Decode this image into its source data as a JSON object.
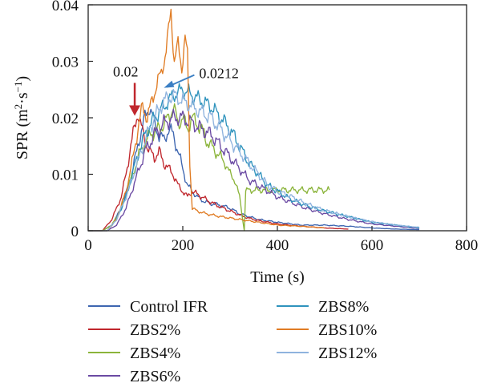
{
  "chart_data": {
    "type": "line",
    "title": "",
    "xlabel": "Time (s)",
    "ylabel_main": "SPR (m",
    "ylabel_sup1": "2",
    "ylabel_mid": "·s",
    "ylabel_sup2": "−1",
    "ylabel_end": ")",
    "xlim": [
      0,
      800
    ],
    "ylim": [
      0,
      0.04
    ],
    "x_ticks": [
      "0",
      "200",
      "400",
      "600",
      "800"
    ],
    "y_ticks": [
      "0",
      "0.01",
      "0.02",
      "0.03",
      "0.04"
    ],
    "grid": false,
    "legend_position": "bottom",
    "annotations": [
      {
        "label": "0.02",
        "x": 95,
        "y": 0.0205,
        "color": "#c0272d"
      },
      {
        "label": "0.0212",
        "x": 160,
        "y": 0.0253,
        "color": "#3b7fc4"
      }
    ],
    "series": [
      {
        "name": "Control IFR",
        "color": "#3e66b0",
        "points": [
          [
            0,
            0
          ],
          [
            30,
            0
          ],
          [
            50,
            0.001
          ],
          [
            70,
            0.004
          ],
          [
            85,
            0.008
          ],
          [
            100,
            0.013
          ],
          [
            110,
            0.017
          ],
          [
            120,
            0.02
          ],
          [
            130,
            0.022
          ],
          [
            140,
            0.019
          ],
          [
            150,
            0.017
          ],
          [
            160,
            0.016
          ],
          [
            170,
            0.018
          ],
          [
            180,
            0.017
          ],
          [
            190,
            0.014
          ],
          [
            200,
            0.011
          ],
          [
            210,
            0.008
          ],
          [
            230,
            0.006
          ],
          [
            250,
            0.005
          ],
          [
            280,
            0.0045
          ],
          [
            300,
            0.004
          ],
          [
            320,
            0.003
          ],
          [
            340,
            0.0025
          ],
          [
            360,
            0.002
          ],
          [
            400,
            0.0015
          ],
          [
            450,
            0.001
          ],
          [
            500,
            0.001
          ],
          [
            550,
            0.0008
          ],
          [
            600,
            0.0005
          ],
          [
            650,
            0.0003
          ],
          [
            700,
            0.0002
          ]
        ]
      },
      {
        "name": "ZBS2%",
        "color": "#c0272d",
        "points": [
          [
            0,
            0
          ],
          [
            30,
            0
          ],
          [
            50,
            0.002
          ],
          [
            70,
            0.006
          ],
          [
            80,
            0.01
          ],
          [
            90,
            0.015
          ],
          [
            100,
            0.019
          ],
          [
            105,
            0.021
          ],
          [
            110,
            0.019
          ],
          [
            120,
            0.016
          ],
          [
            130,
            0.014
          ],
          [
            140,
            0.013
          ],
          [
            150,
            0.014
          ],
          [
            160,
            0.012
          ],
          [
            170,
            0.011
          ],
          [
            180,
            0.01
          ],
          [
            190,
            0.008
          ],
          [
            200,
            0.007
          ],
          [
            210,
            0.006
          ],
          [
            220,
            0.007
          ],
          [
            240,
            0.006
          ],
          [
            260,
            0.005
          ],
          [
            280,
            0.0042
          ],
          [
            300,
            0.0035
          ],
          [
            320,
            0.0028
          ],
          [
            340,
            0.0022
          ],
          [
            360,
            0.0018
          ],
          [
            380,
            0.0015
          ],
          [
            400,
            0.0012
          ],
          [
            450,
            0.0008
          ],
          [
            500,
            0.0005
          ],
          [
            550,
            0.0003
          ]
        ]
      },
      {
        "name": "ZBS4%",
        "color": "#8bb43a",
        "points": [
          [
            0,
            0
          ],
          [
            30,
            0
          ],
          [
            50,
            0.001
          ],
          [
            70,
            0.004
          ],
          [
            90,
            0.009
          ],
          [
            110,
            0.014
          ],
          [
            130,
            0.017
          ],
          [
            150,
            0.018
          ],
          [
            170,
            0.02
          ],
          [
            180,
            0.022
          ],
          [
            190,
            0.019
          ],
          [
            200,
            0.02
          ],
          [
            210,
            0.018
          ],
          [
            220,
            0.02
          ],
          [
            230,
            0.019
          ],
          [
            240,
            0.018
          ],
          [
            250,
            0.016
          ],
          [
            260,
            0.015
          ],
          [
            270,
            0.014
          ],
          [
            280,
            0.013
          ],
          [
            290,
            0.012
          ],
          [
            300,
            0.01
          ],
          [
            310,
            0.009
          ],
          [
            320,
            0.006
          ],
          [
            325,
            0.003
          ],
          [
            330,
            0
          ],
          [
            333,
            0.007
          ],
          [
            340,
            0.0072
          ],
          [
            400,
            0.0072
          ],
          [
            450,
            0.0072
          ],
          [
            510,
            0.0072
          ]
        ]
      },
      {
        "name": "ZBS6%",
        "color": "#6b4aa3",
        "points": [
          [
            0,
            0
          ],
          [
            40,
            0
          ],
          [
            60,
            0.001
          ],
          [
            80,
            0.004
          ],
          [
            100,
            0.009
          ],
          [
            120,
            0.014
          ],
          [
            140,
            0.017
          ],
          [
            160,
            0.019
          ],
          [
            180,
            0.02
          ],
          [
            200,
            0.02
          ],
          [
            220,
            0.019
          ],
          [
            240,
            0.018
          ],
          [
            260,
            0.017
          ],
          [
            280,
            0.015
          ],
          [
            300,
            0.013
          ],
          [
            320,
            0.011
          ],
          [
            340,
            0.009
          ],
          [
            360,
            0.008
          ],
          [
            380,
            0.007
          ],
          [
            400,
            0.006
          ],
          [
            430,
            0.005
          ],
          [
            460,
            0.004
          ],
          [
            500,
            0.003
          ],
          [
            550,
            0.002
          ],
          [
            600,
            0.0012
          ],
          [
            650,
            0.0008
          ],
          [
            700,
            0.0004
          ]
        ]
      },
      {
        "name": "ZBS8%",
        "color": "#2f93bd",
        "points": [
          [
            0,
            0
          ],
          [
            40,
            0
          ],
          [
            60,
            0.002
          ],
          [
            80,
            0.006
          ],
          [
            100,
            0.012
          ],
          [
            120,
            0.017
          ],
          [
            140,
            0.02
          ],
          [
            160,
            0.022
          ],
          [
            180,
            0.024
          ],
          [
            200,
            0.025
          ],
          [
            220,
            0.024
          ],
          [
            240,
            0.023
          ],
          [
            260,
            0.022
          ],
          [
            280,
            0.02
          ],
          [
            300,
            0.018
          ],
          [
            320,
            0.015
          ],
          [
            340,
            0.012
          ],
          [
            360,
            0.01
          ],
          [
            380,
            0.008
          ],
          [
            400,
            0.007
          ],
          [
            430,
            0.0055
          ],
          [
            460,
            0.0045
          ],
          [
            500,
            0.0035
          ],
          [
            550,
            0.0025
          ],
          [
            600,
            0.0015
          ],
          [
            650,
            0.001
          ],
          [
            700,
            0.0005
          ]
        ]
      },
      {
        "name": "ZBS10%",
        "color": "#e07c24",
        "points": [
          [
            0,
            0
          ],
          [
            40,
            0
          ],
          [
            60,
            0.002
          ],
          [
            80,
            0.007
          ],
          [
            95,
            0.013
          ],
          [
            105,
            0.018
          ],
          [
            115,
            0.022
          ],
          [
            125,
            0.02
          ],
          [
            135,
            0.023
          ],
          [
            145,
            0.026
          ],
          [
            155,
            0.028
          ],
          [
            165,
            0.032
          ],
          [
            175,
            0.039
          ],
          [
            182,
            0.03
          ],
          [
            190,
            0.033
          ],
          [
            198,
            0.029
          ],
          [
            205,
            0.034
          ],
          [
            210,
            0.031
          ],
          [
            215,
            0.012
          ],
          [
            220,
            0.004
          ],
          [
            230,
            0.0035
          ],
          [
            250,
            0.003
          ],
          [
            280,
            0.0025
          ],
          [
            320,
            0.002
          ],
          [
            360,
            0.0015
          ],
          [
            400,
            0.001
          ],
          [
            450,
            0.0008
          ],
          [
            500,
            0.0005
          ]
        ]
      },
      {
        "name": "ZBS12%",
        "color": "#8fb3de",
        "points": [
          [
            0,
            0
          ],
          [
            40,
            0
          ],
          [
            60,
            0.002
          ],
          [
            80,
            0.006
          ],
          [
            100,
            0.011
          ],
          [
            120,
            0.016
          ],
          [
            140,
            0.02
          ],
          [
            160,
            0.023
          ],
          [
            180,
            0.024
          ],
          [
            200,
            0.023
          ],
          [
            220,
            0.022
          ],
          [
            240,
            0.021
          ],
          [
            260,
            0.02
          ],
          [
            280,
            0.018
          ],
          [
            300,
            0.016
          ],
          [
            320,
            0.014
          ],
          [
            340,
            0.012
          ],
          [
            360,
            0.01
          ],
          [
            380,
            0.008
          ],
          [
            400,
            0.007
          ],
          [
            430,
            0.006
          ],
          [
            460,
            0.0048
          ],
          [
            500,
            0.0036
          ],
          [
            550,
            0.0025
          ],
          [
            600,
            0.0016
          ],
          [
            650,
            0.001
          ],
          [
            700,
            0.0006
          ]
        ]
      }
    ]
  }
}
